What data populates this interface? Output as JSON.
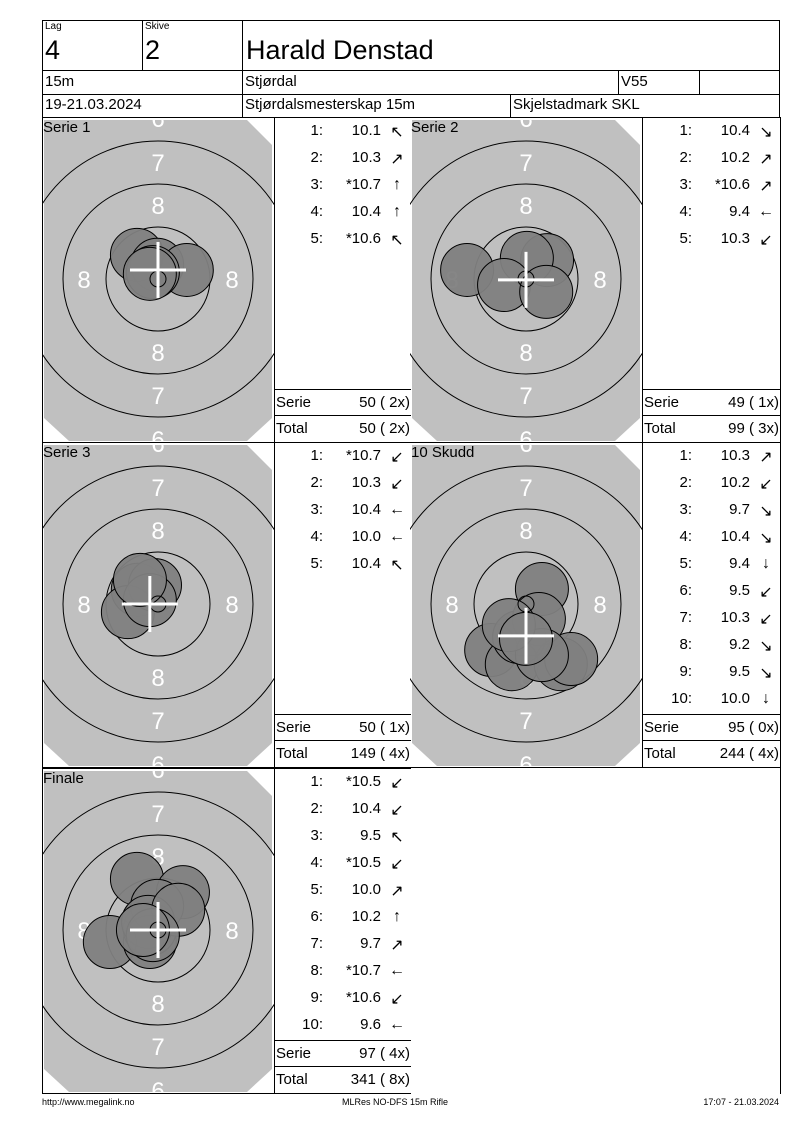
{
  "header": {
    "lag_label": "Lag",
    "lag": "4",
    "skive_label": "Skive",
    "skive": "2",
    "name": "Harald Denstad",
    "distance": "15m",
    "location": "Stjørdal",
    "class": "V55",
    "class_extra": "",
    "date": "19-21.03.2024",
    "event": "Stjørdalsmesterskap 15m",
    "club": "Skjelstadmark SKL"
  },
  "target_ring_labels": {
    "r6": "6",
    "r7": "7",
    "r8": "8"
  },
  "panels": [
    {
      "title": "Serie 1",
      "shots": [
        {
          "n": "1:",
          "value": "10.1",
          "dir": "up-left"
        },
        {
          "n": "2:",
          "value": "10.3",
          "dir": "up-right"
        },
        {
          "n": "3:",
          "value": "*10.7",
          "dir": "up"
        },
        {
          "n": "4:",
          "value": "10.4",
          "dir": "up"
        },
        {
          "n": "5:",
          "value": "*10.6",
          "dir": "up-left"
        }
      ],
      "serie_label": "Serie",
      "serie": "50 ( 2x)",
      "total_label": "Total",
      "total": "50 ( 2x)",
      "impacts": [
        [
          -0.49,
          -0.56
        ],
        [
          -0.02,
          -0.33
        ],
        [
          0.67,
          -0.21
        ],
        [
          -0.12,
          -0.16
        ],
        [
          -0.19,
          -0.12
        ]
      ],
      "mpi": [
        0,
        -0.21
      ]
    },
    {
      "title": "Serie 2",
      "shots": [
        {
          "n": "1:",
          "value": "10.4",
          "dir": "down-right"
        },
        {
          "n": "2:",
          "value": "10.2",
          "dir": "up-right"
        },
        {
          "n": "3:",
          "value": "*10.6",
          "dir": "up-right"
        },
        {
          "n": "4:",
          "value": "9.4",
          "dir": "left"
        },
        {
          "n": "5:",
          "value": "10.3",
          "dir": "down-left"
        }
      ],
      "serie_label": "Serie",
      "serie": "49 ( 1x)",
      "total_label": "Total",
      "total": "99 ( 3x)",
      "impacts": [
        [
          -1.37,
          -0.21
        ],
        [
          0.49,
          -0.44
        ],
        [
          0.02,
          -0.49
        ],
        [
          -0.51,
          0.14
        ],
        [
          0.47,
          0.3
        ]
      ],
      "mpi": [
        0,
        0.02
      ]
    },
    {
      "title": "Serie 3",
      "shots": [
        {
          "n": "1:",
          "value": "*10.7",
          "dir": "down-left"
        },
        {
          "n": "2:",
          "value": "10.3",
          "dir": "down-left"
        },
        {
          "n": "3:",
          "value": "10.4",
          "dir": "left"
        },
        {
          "n": "4:",
          "value": "10.0",
          "dir": "left"
        },
        {
          "n": "5:",
          "value": "10.4",
          "dir": "up-left"
        }
      ],
      "serie_label": "Serie",
      "serie": "50 ( 1x)",
      "total_label": "Total",
      "total": "149 ( 4x)",
      "impacts": [
        [
          -0.47,
          -0.33
        ],
        [
          -0.7,
          0.19
        ],
        [
          -0.07,
          -0.44
        ],
        [
          -0.19,
          -0.09
        ],
        [
          -0.42,
          -0.56
        ]
      ],
      "mpi": [
        -0.19,
        0
      ]
    },
    {
      "title": "10 Skudd",
      "shots": [
        {
          "n": "1:",
          "value": "10.3",
          "dir": "up-right"
        },
        {
          "n": "2:",
          "value": "10.2",
          "dir": "down-left"
        },
        {
          "n": "3:",
          "value": "9.7",
          "dir": "down-right"
        },
        {
          "n": "4:",
          "value": "10.4",
          "dir": "down-right"
        },
        {
          "n": "5:",
          "value": "9.4",
          "dir": "down"
        },
        {
          "n": "6:",
          "value": "9.5",
          "dir": "down-left"
        },
        {
          "n": "7:",
          "value": "10.3",
          "dir": "down-left"
        },
        {
          "n": "8:",
          "value": "9.2",
          "dir": "down-right"
        },
        {
          "n": "9:",
          "value": "9.5",
          "dir": "down-right"
        },
        {
          "n": "10:",
          "value": "10.0",
          "dir": "down"
        }
      ],
      "serie_label": "Serie",
      "serie": "95 ( 0x)",
      "total_label": "Total",
      "total": "244 ( 4x)",
      "impacts": [
        [
          0.37,
          -0.35
        ],
        [
          -0.81,
          1.07
        ],
        [
          -0.33,
          1.4
        ],
        [
          0.81,
          1.4
        ],
        [
          1.05,
          1.28
        ],
        [
          -0.16,
          0.77
        ],
        [
          0.3,
          0.35
        ],
        [
          0.37,
          1.19
        ],
        [
          -0.4,
          0.49
        ],
        [
          0,
          0.81
        ]
      ],
      "mpi": [
        0,
        0.74
      ]
    },
    {
      "title": "Finale",
      "shots": [
        {
          "n": "1:",
          "value": "*10.5",
          "dir": "down-left"
        },
        {
          "n": "2:",
          "value": "10.4",
          "dir": "down-left"
        },
        {
          "n": "3:",
          "value": "9.5",
          "dir": "up-left"
        },
        {
          "n": "4:",
          "value": "*10.5",
          "dir": "down-left"
        },
        {
          "n": "5:",
          "value": "10.0",
          "dir": "up-right"
        },
        {
          "n": "6:",
          "value": "10.2",
          "dir": "up"
        },
        {
          "n": "7:",
          "value": "9.7",
          "dir": "up-right"
        },
        {
          "n": "8:",
          "value": "*10.7",
          "dir": "left"
        },
        {
          "n": "9:",
          "value": "*10.6",
          "dir": "down-left"
        },
        {
          "n": "10:",
          "value": "9.6",
          "dir": "left"
        }
      ],
      "serie_label": "Serie",
      "serie": "97 ( 4x)",
      "total_label": "Total",
      "total": "341 ( 8x)",
      "impacts": [
        [
          -0.49,
          -1.19
        ],
        [
          0.58,
          -0.88
        ],
        [
          -0.02,
          -0.56
        ],
        [
          -1.12,
          0.28
        ],
        [
          -0.19,
          0.28
        ],
        [
          -0.19,
          -0.02
        ],
        [
          -0.23,
          -0.19
        ],
        [
          0.47,
          -0.47
        ],
        [
          -0.12,
          0.12
        ],
        [
          -0.35,
          0
        ]
      ],
      "mpi": [
        0,
        0
      ]
    }
  ],
  "colors": {
    "target": "#c0c0c0",
    "impact": "#808080",
    "rings": "#000000",
    "ring_numbers": "#ffffff",
    "mpi_cross": "#ffffff"
  },
  "footer": {
    "left": "http://www.megalink.no",
    "center": "MLRes NO-DFS 15m Rifle",
    "right": "17:07 - 21.03.2024"
  }
}
